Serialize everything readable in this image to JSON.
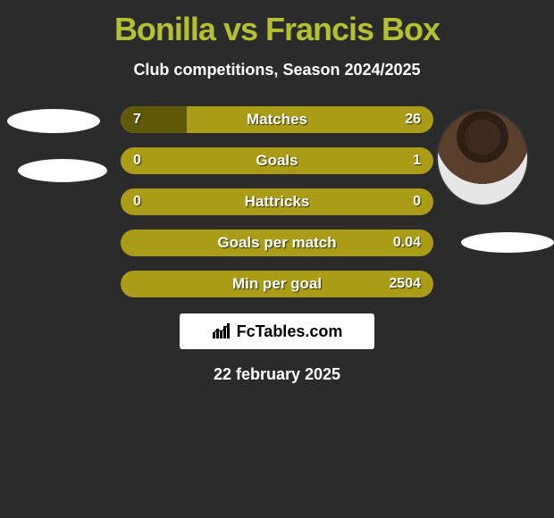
{
  "title": "Bonilla vs Francis Box",
  "subtitle": "Club competitions, Season 2024/2025",
  "date": "22 february 2025",
  "brand_text": "FcTables.com",
  "colors": {
    "bg": "#2b2b2b",
    "title": "#b3c030",
    "row_bg": "#aa9c17",
    "row_fill": "#5f5a07",
    "text": "#ffffff",
    "badge_bg": "#ffffff",
    "badge_text": "#000000"
  },
  "rows": [
    {
      "label": "Matches",
      "left_value": "7",
      "right_value": "26",
      "left_fill_pct": 21,
      "right_fill_pct": 0
    },
    {
      "label": "Goals",
      "left_value": "0",
      "right_value": "1",
      "left_fill_pct": 0,
      "right_fill_pct": 0
    },
    {
      "label": "Hattricks",
      "left_value": "0",
      "right_value": "0",
      "left_fill_pct": 0,
      "right_fill_pct": 0
    },
    {
      "label": "Goals per match",
      "left_value": "",
      "right_value": "0.04",
      "left_fill_pct": 0,
      "right_fill_pct": 0
    },
    {
      "label": "Min per goal",
      "left_value": "",
      "right_value": "2504",
      "left_fill_pct": 0,
      "right_fill_pct": 0
    }
  ]
}
